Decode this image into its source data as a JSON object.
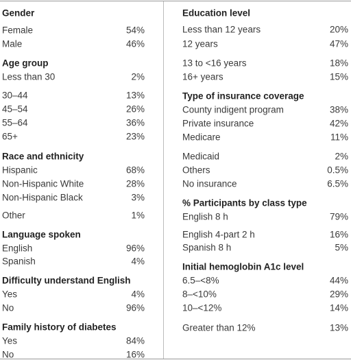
{
  "left": [
    {
      "title": "Gender",
      "rows": [
        [
          "Female",
          "54%"
        ],
        [
          "Male",
          "46%"
        ]
      ]
    },
    {
      "title": "Age group",
      "rows": [
        [
          "Less than 30",
          "2%"
        ],
        [
          "30–44",
          "13%"
        ],
        [
          "45–54",
          "26%"
        ],
        [
          "55–64",
          "36%"
        ],
        [
          "65+",
          "23%"
        ]
      ]
    },
    {
      "title": "Race and ethnicity",
      "rows": [
        [
          "Hispanic",
          "68%"
        ],
        [
          "Non-Hispanic White",
          "28%"
        ],
        [
          "Non-Hispanic Black",
          "3%"
        ],
        [
          "Other",
          "1%"
        ]
      ]
    },
    {
      "title": "Language spoken",
      "rows": [
        [
          "English",
          "96%"
        ],
        [
          "Spanish",
          "4%"
        ]
      ]
    },
    {
      "title": "Difficulty understand English",
      "rows": [
        [
          "Yes",
          "4%"
        ],
        [
          "No",
          "96%"
        ]
      ]
    },
    {
      "title": "Family history of diabetes",
      "rows": [
        [
          "Yes",
          "84%"
        ],
        [
          "No",
          "16%"
        ]
      ]
    }
  ],
  "right": [
    {
      "title": "Education level",
      "rows": [
        [
          "Less than 12 years",
          "20%"
        ],
        [
          "12 years",
          "47%"
        ],
        [
          "13 to <16 years",
          "18%"
        ],
        [
          "16+ years",
          "15%"
        ]
      ]
    },
    {
      "title": "Type of insurance coverage",
      "rows": [
        [
          "County indigent program",
          "38%"
        ],
        [
          "Private insurance",
          "42%"
        ],
        [
          "Medicare",
          "11%"
        ],
        [
          "Medicaid",
          "2%"
        ],
        [
          "Others",
          "0.5%"
        ],
        [
          "No insurance",
          "6.5%"
        ]
      ]
    },
    {
      "title": "% Participants by class type",
      "rows": [
        [
          "English 8 h",
          "79%"
        ],
        [
          "English 4-part 2 h",
          "16%"
        ],
        [
          "Spanish 8 h",
          "5%"
        ]
      ]
    },
    {
      "title": "Initial hemoglobin A1c level",
      "rows": [
        [
          "6.5–<8%",
          "44%"
        ],
        [
          "8–<10%",
          "29%"
        ],
        [
          "10–<12%",
          "14%"
        ],
        [
          "Greater than 12%",
          "13%"
        ]
      ]
    }
  ]
}
